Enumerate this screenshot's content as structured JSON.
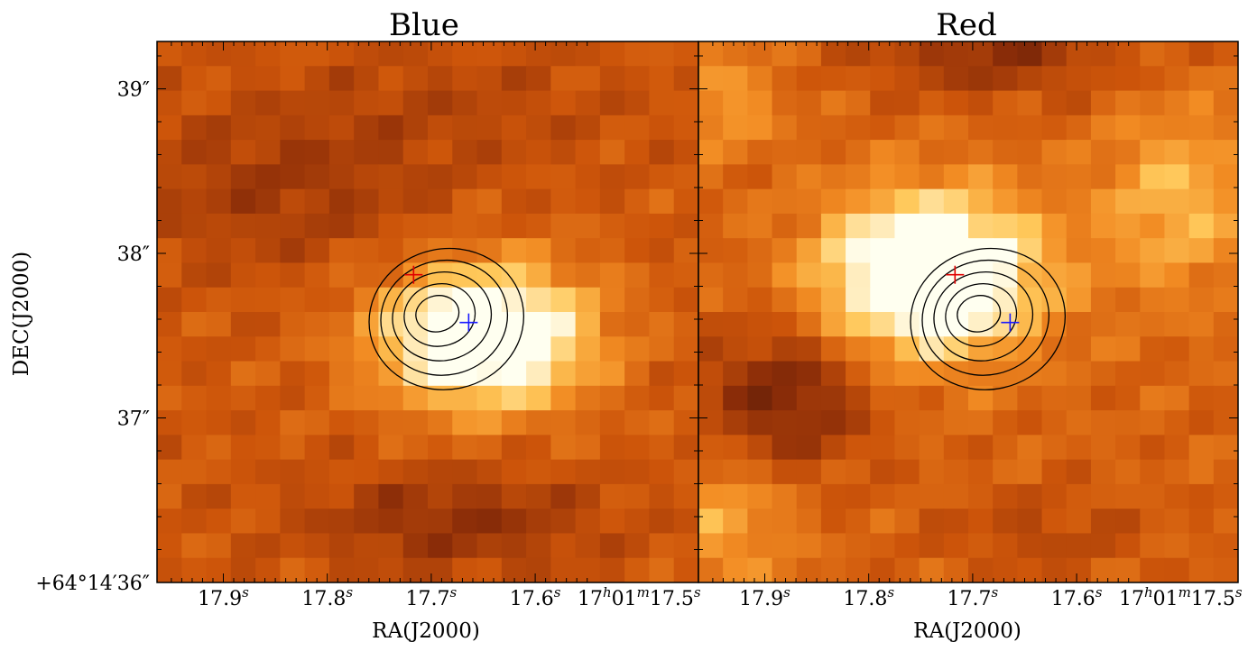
{
  "chart_data": [
    {
      "type": "heatmap",
      "title": "Blue",
      "xlabel": "RA(J2000)",
      "ylabel": "DEC(J2000)",
      "x_tick_labels": [
        {
          "main": "17.9",
          "sup": "s"
        },
        {
          "main": "17.8",
          "sup": "s"
        },
        {
          "main": "17.7",
          "sup": "s"
        },
        {
          "main": "17.6",
          "sup": "s"
        },
        {
          "parts": [
            "17",
            "h",
            "01",
            "m",
            "17.5",
            "s"
          ]
        }
      ],
      "y_tick_labels": [
        "+64°14′36″",
        "37″",
        "38″",
        "39″"
      ],
      "markers": [
        {
          "color": "#e00000",
          "ra_s": 17.717,
          "dec_arcsec": 37.87
        },
        {
          "color": "#1a1aff",
          "ra_s": 17.664,
          "dec_arcsec": 37.58
        }
      ],
      "contour_levels": 5,
      "colormap": "afmhot"
    },
    {
      "type": "heatmap",
      "title": "Red",
      "xlabel": "RA(J2000)",
      "x_tick_labels": [
        {
          "main": "17.9",
          "sup": "s"
        },
        {
          "main": "17.8",
          "sup": "s"
        },
        {
          "main": "17.7",
          "sup": "s"
        },
        {
          "main": "17.6",
          "sup": "s"
        },
        {
          "parts": [
            "17",
            "h",
            "01",
            "m",
            "17.5",
            "s"
          ]
        }
      ],
      "markers": [
        {
          "color": "#e00000",
          "ra_s": 17.717,
          "dec_arcsec": 37.87
        },
        {
          "color": "#1a1aff",
          "ra_s": 17.664,
          "dec_arcsec": 37.58
        }
      ],
      "contour_levels": 5,
      "colormap": "afmhot"
    }
  ]
}
